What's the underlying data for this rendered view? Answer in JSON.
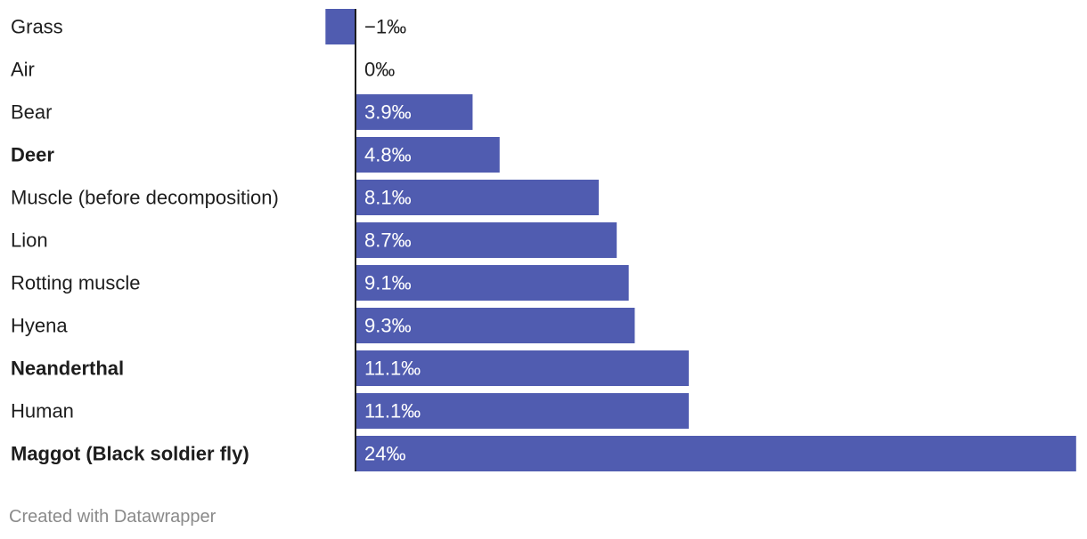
{
  "chart_data": {
    "type": "bar",
    "orientation": "horizontal",
    "categories": [
      "Grass",
      "Air",
      "Bear",
      "Deer",
      "Muscle (before decomposition)",
      "Lion",
      "Rotting muscle",
      "Hyena",
      "Neanderthal",
      "Human",
      "Maggot (Black soldier fly)"
    ],
    "values": [
      -1,
      0,
      3.9,
      4.8,
      8.1,
      8.7,
      9.1,
      9.3,
      11.1,
      11.1,
      24
    ],
    "value_labels": [
      "−1‰",
      "0‰",
      "3.9‰",
      "4.8‰",
      "8.1‰",
      "8.7‰",
      "9.1‰",
      "9.3‰",
      "11.1‰",
      "11.1‰",
      "24‰"
    ],
    "bold_categories": [
      "Deer",
      "Neanderthal",
      "Maggot (Black soldier fly)"
    ],
    "unit": "‰",
    "xlim": [
      -1,
      24
    ],
    "title": "",
    "xlabel": "",
    "ylabel": "",
    "grid": false,
    "colors": {
      "bar": "#505cb0",
      "label_inside": "#ffffff",
      "label_outside": "#1d1d1d",
      "axis": "#1d1d1d"
    }
  },
  "footer": {
    "credit": "Created with Datawrapper"
  }
}
